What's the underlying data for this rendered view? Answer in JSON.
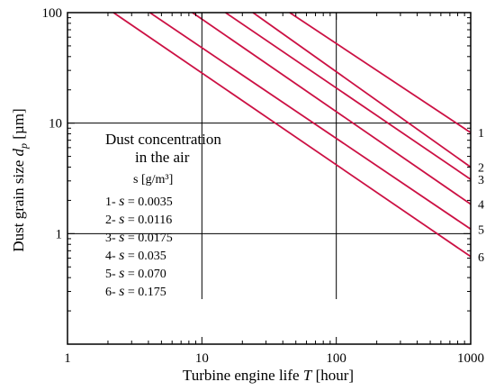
{
  "chart_data": {
    "type": "line",
    "x_scale": "log",
    "y_scale": "log",
    "xlim": [
      1,
      1000
    ],
    "ylim": [
      0.1,
      100
    ],
    "xlabel": "Turbine engine life",
    "xlabel_var": "T",
    "xlabel_unit": "[hour]",
    "ylabel": "Dust grain size",
    "ylabel_var": "d",
    "ylabel_sub": "p",
    "ylabel_unit": "[µm]",
    "x_ticks": [
      "1",
      "10",
      "100",
      "1000"
    ],
    "y_ticks": [
      "1",
      "10",
      "100"
    ],
    "grid": "major decades",
    "legend": {
      "title_line1": "Dust concentration",
      "title_line2": "in the air",
      "unit_line": "s  [g/m³]",
      "entries": [
        {
          "id": "1",
          "prefix": "1-",
          "var": "s",
          "value": "= 0.0035"
        },
        {
          "id": "2",
          "prefix": "2-",
          "var": "s",
          "value": "= 0.0116"
        },
        {
          "id": "3",
          "prefix": "3-",
          "var": "s",
          "value": "= 0.0175"
        },
        {
          "id": "4",
          "prefix": "4-",
          "var": "s",
          "value": "= 0.035"
        },
        {
          "id": "5",
          "prefix": "5-",
          "var": "s",
          "value": "= 0.070"
        },
        {
          "id": "6",
          "prefix": "6-",
          "var": "s",
          "value": "= 0.175"
        }
      ]
    },
    "series": [
      {
        "label": "1",
        "x": [
          45,
          1000
        ],
        "y": [
          100,
          8.2
        ]
      },
      {
        "label": "2",
        "x": [
          24,
          1000
        ],
        "y": [
          100,
          4.0
        ]
      },
      {
        "label": "3",
        "x": [
          15,
          1000
        ],
        "y": [
          100,
          3.1
        ]
      },
      {
        "label": "4",
        "x": [
          8.5,
          1000
        ],
        "y": [
          100,
          1.85
        ]
      },
      {
        "label": "5",
        "x": [
          4.1,
          1000
        ],
        "y": [
          100,
          1.1
        ]
      },
      {
        "label": "6",
        "x": [
          2.2,
          1000
        ],
        "y": [
          100,
          0.62
        ]
      }
    ],
    "colors": {
      "line": "#cc1144",
      "grid": "#000000",
      "text": "#000000"
    }
  }
}
